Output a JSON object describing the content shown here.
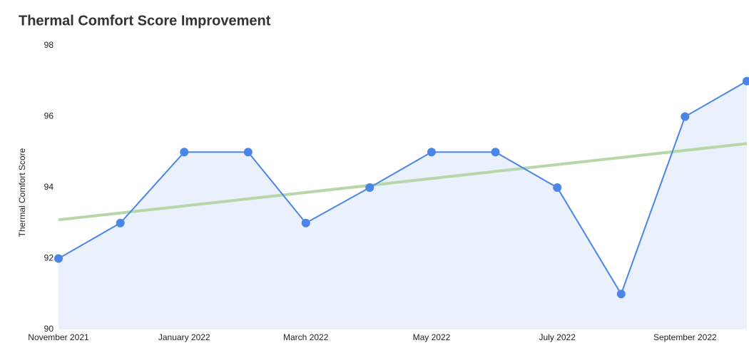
{
  "chart_data": {
    "type": "line",
    "title": "Thermal Comfort Score Improvement",
    "y_label": "Thermal Comfort Score",
    "x": [
      "2021-11",
      "2021-12",
      "2022-01",
      "2022-02",
      "2022-03",
      "2022-04",
      "2022-05",
      "2022-06",
      "2022-07",
      "2022-08",
      "2022-09",
      "2022-10"
    ],
    "series": [
      {
        "color": "#4a86e8",
        "fill": "#eaf0fc",
        "values": [
          92,
          93,
          95,
          95,
          93,
          94,
          95,
          95,
          94,
          91,
          96,
          97
        ]
      }
    ],
    "trend": {
      "color": "#b7d7a8",
      "x": [
        "2021-11",
        "2022-10"
      ],
      "values": [
        93.09,
        95.24
      ]
    },
    "xlim": [
      "2021-11",
      "2022-10"
    ],
    "xticks": [
      {
        "value": "2021-11",
        "label": "November 2021"
      },
      {
        "value": "2022-01",
        "label": "January 2022"
      },
      {
        "value": "2022-03",
        "label": "March 2022"
      },
      {
        "value": "2022-05",
        "label": "May 2022"
      },
      {
        "value": "2022-07",
        "label": "July 2022"
      },
      {
        "value": "2022-09",
        "label": "September 2022"
      }
    ],
    "ylim": [
      90,
      98
    ],
    "yticks": [
      90,
      92,
      94,
      96,
      98
    ],
    "grid": false
  }
}
